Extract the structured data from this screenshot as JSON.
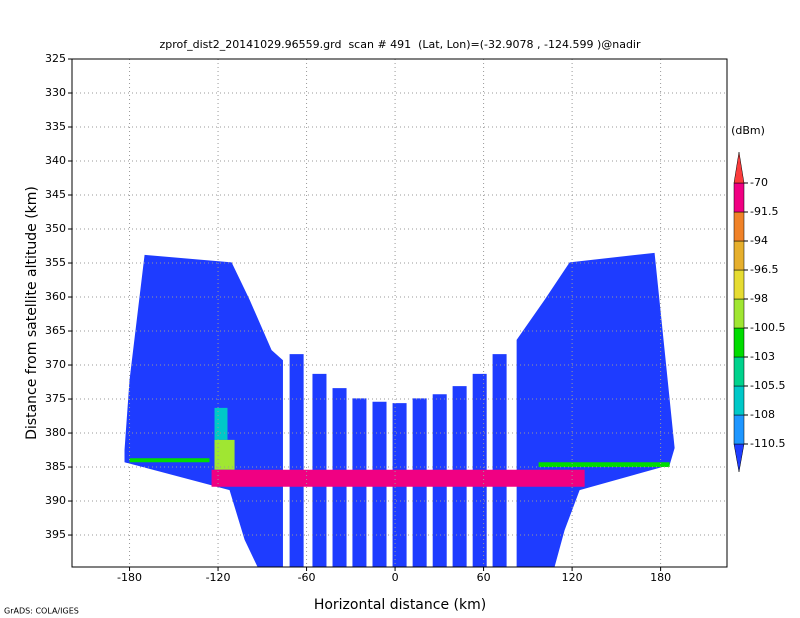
{
  "chart_data": {
    "type": "field",
    "title": "zprof_dist2_20141029.96559.grd  scan # 491  (Lat, Lon)=(-32.9078 , -124.599 )@nadir",
    "xlabel": "Horizontal distance (km)",
    "ylabel": "Distance from satellite altitude (km)",
    "footer": "GrADS: COLA/IGES",
    "xlim": [
      -219,
      225
    ],
    "ylim": [
      325,
      399.7
    ],
    "y_inverted": true,
    "xticks": [
      -180,
      -120,
      -60,
      0,
      60,
      120,
      180
    ],
    "yticks": [
      325,
      330,
      335,
      340,
      345,
      350,
      355,
      360,
      365,
      370,
      375,
      380,
      385,
      390,
      395
    ],
    "grid": true,
    "colorbar": {
      "unit": "(dBm)",
      "levels": [
        -110.5,
        -108,
        -105.5,
        -103,
        -100.5,
        -98,
        -96.5,
        -94,
        -91.5,
        -70
      ],
      "colors": [
        "#1e3cff",
        "#1e96ff",
        "#00c8c8",
        "#00d28c",
        "#00dc00",
        "#a0e632",
        "#e6dc32",
        "#e6af2d",
        "#f08228",
        "#f00082",
        "#fa3c3c"
      ]
    },
    "regions": [
      {
        "value": -112,
        "x": [
          -169.8,
          -110.8,
          -98.6,
          -83.7,
          -76,
          -76,
          -93.2,
          -102,
          -112.2,
          -125.8,
          -183.4,
          -183.4,
          -180
        ],
        "y": [
          353.8,
          354.9,
          360.4,
          367.8,
          369.3,
          399.7,
          399.7,
          395.7,
          388.4,
          387.6,
          384.3,
          382.5,
          372.2
        ]
      },
      {
        "value": -112,
        "x": [
          118.3,
          175.9,
          182.7,
          189.5,
          186.1,
          125.1,
          114.9,
          108.1,
          82.4,
          82.4,
          101.4
        ],
        "y": [
          354.9,
          353.5,
          367.8,
          382.2,
          384.7,
          388.4,
          394.3,
          399.7,
          399.7,
          366.3,
          360.4
        ]
      },
      {
        "value": -112,
        "x": [
          -71.5,
          -62,
          -62,
          -71.5
        ],
        "y": [
          368.4,
          368.4,
          399.7,
          399.7
        ]
      },
      {
        "value": -112,
        "x": [
          -56,
          -46.5,
          -46.5,
          -56
        ],
        "y": [
          371.3,
          371.3,
          399.7,
          399.7
        ]
      },
      {
        "value": -112,
        "x": [
          -42.4,
          -32.9,
          -32.9,
          -42.4
        ],
        "y": [
          373.4,
          373.4,
          399.7,
          399.7
        ]
      },
      {
        "value": -112,
        "x": [
          -28.9,
          -19.4,
          -19.4,
          -28.9
        ],
        "y": [
          374.9,
          374.9,
          399.7,
          399.7
        ]
      },
      {
        "value": -112,
        "x": [
          -15.3,
          -5.8,
          -5.8,
          -15.3
        ],
        "y": [
          375.4,
          375.4,
          399.7,
          399.7
        ]
      },
      {
        "value": -112,
        "x": [
          -1.7,
          7.8,
          7.8,
          -1.7
        ],
        "y": [
          375.6,
          375.6,
          399.7,
          399.7
        ]
      },
      {
        "value": -112,
        "x": [
          11.9,
          21.4,
          21.4,
          11.9
        ],
        "y": [
          374.9,
          374.9,
          399.7,
          399.7
        ]
      },
      {
        "value": -112,
        "x": [
          25.5,
          35,
          35,
          25.5
        ],
        "y": [
          374.3,
          374.3,
          399.7,
          399.7
        ]
      },
      {
        "value": -112,
        "x": [
          39,
          48.5,
          48.5,
          39
        ],
        "y": [
          373.1,
          373.1,
          399.7,
          399.7
        ]
      },
      {
        "value": -112,
        "x": [
          52.6,
          62.1,
          62.1,
          52.6
        ],
        "y": [
          371.3,
          371.3,
          399.7,
          399.7
        ]
      },
      {
        "value": -112,
        "x": [
          66.1,
          75.6,
          75.6,
          66.1
        ],
        "y": [
          368.4,
          368.4,
          399.7,
          399.7
        ]
      },
      {
        "value": -107,
        "x": [
          -122.4,
          -113.6,
          -113.6,
          -122.4
        ],
        "y": [
          376.3,
          376.3,
          381,
          381
        ]
      },
      {
        "value": -99,
        "x": [
          -122.4,
          -108.8,
          -108.8,
          -122.4
        ],
        "y": [
          381,
          381,
          385.4,
          385.4
        ]
      },
      {
        "value": -102,
        "x": [
          97.3,
          186.1,
          186.1,
          97.3
        ],
        "y": [
          384.3,
          384.3,
          385,
          385
        ]
      },
      {
        "value": -102,
        "x": [
          -180,
          -125.8,
          -125.8,
          -180
        ],
        "y": [
          383.7,
          383.7,
          384.3,
          384.3
        ]
      },
      {
        "value": -85,
        "x": [
          -124.4,
          128.5,
          128.5,
          -124.4
        ],
        "y": [
          385.4,
          385.4,
          387.9,
          387.9
        ]
      }
    ]
  }
}
